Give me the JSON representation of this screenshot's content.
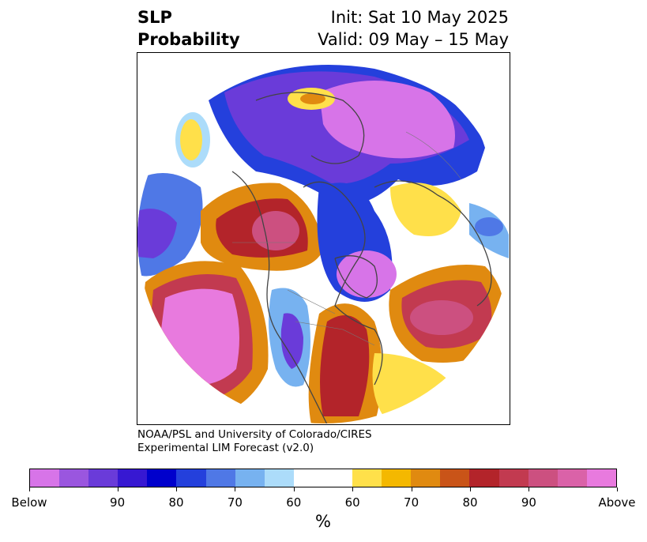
{
  "title": {
    "left_line1": "SLP",
    "left_line2": "Probability",
    "right_line1": "Init: Sat 10 May 2025",
    "right_line2": "Valid: 09 May – 15 May"
  },
  "credit": {
    "line1": "NOAA/PSL and University of Colorado/CIRES",
    "line2": "Experimental LIM Forecast (v2.0)"
  },
  "map": {
    "projection": "polar-stereographic-north",
    "field": "SLP probability"
  },
  "colorbar": {
    "units": "%",
    "colors": [
      "#d774e8",
      "#9a56df",
      "#6a3bd9",
      "#3718d2",
      "#0000cc",
      "#2440dc",
      "#4f78e6",
      "#77b2f0",
      "#acdcfa",
      "#ffffff",
      "#ffe04a",
      "#f4b800",
      "#e08a10",
      "#c95418",
      "#b3242a",
      "#c23a50",
      "#cc5080",
      "#da62a8",
      "#e87ade"
    ],
    "tick_labels": [
      "Below",
      "90",
      "80",
      "70",
      "60",
      "60",
      "70",
      "80",
      "90",
      "Above"
    ]
  }
}
